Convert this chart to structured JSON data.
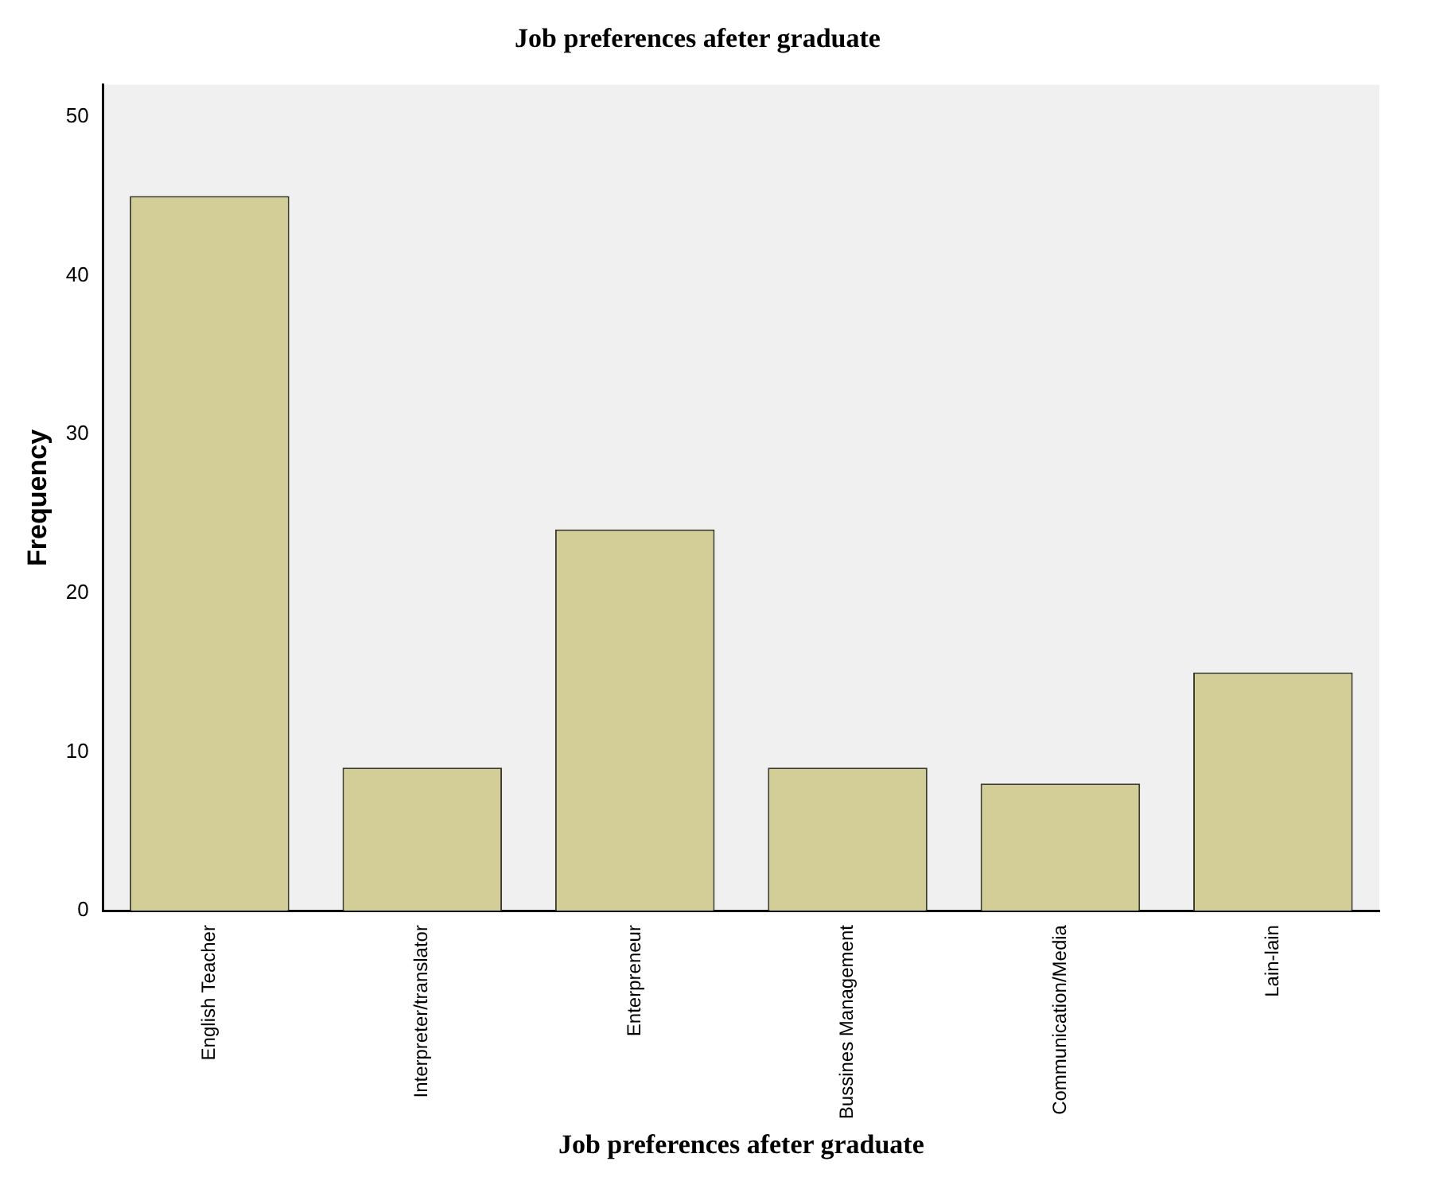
{
  "chart_data": {
    "type": "bar",
    "title": "Job preferences afeter graduate",
    "xlabel": "Job preferences afeter graduate",
    "ylabel": "Frequency",
    "categories": [
      "English Teacher",
      "Interpreter/translator",
      "Enterpreneur",
      "Bussines Management",
      "Communication/Media",
      "Lain-lain"
    ],
    "values": [
      45,
      9,
      24,
      9,
      8,
      15
    ],
    "color": "#d3ce98",
    "ylim": [
      0,
      52
    ],
    "yticks": [
      0,
      10,
      20,
      30,
      40,
      50
    ],
    "grid": false,
    "legend": false
  }
}
